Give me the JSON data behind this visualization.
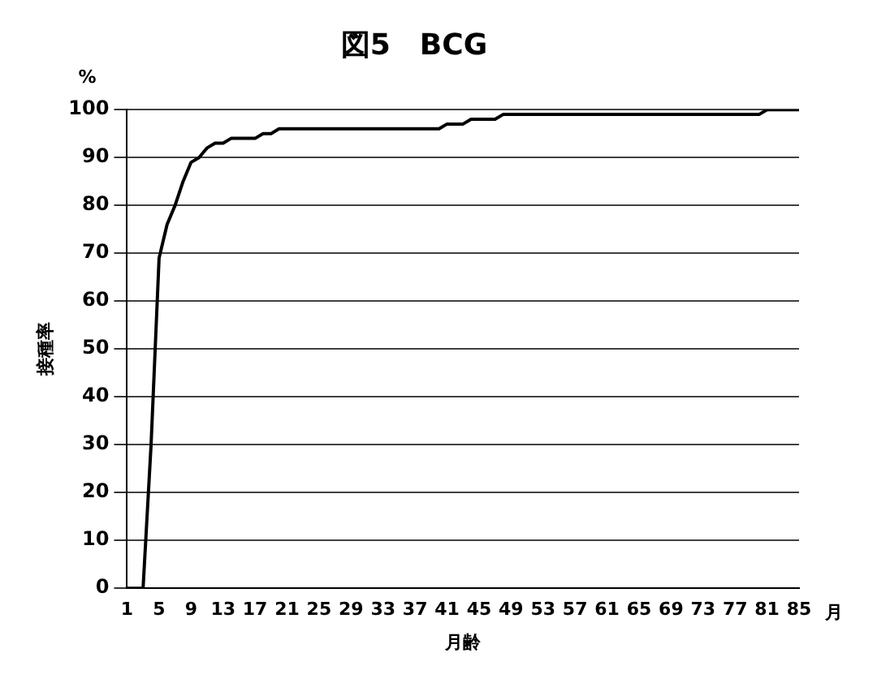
{
  "chart_data": {
    "type": "line",
    "title": "図5　BCG",
    "xlabel": "月齢",
    "ylabel": "接種率",
    "annotations": [
      "%",
      "月"
    ],
    "categories": [
      "1",
      null,
      null,
      null,
      "5",
      null,
      null,
      null,
      "9",
      null,
      null,
      null,
      "13",
      null,
      null,
      null,
      "17",
      null,
      null,
      null,
      "21",
      null,
      null,
      null,
      "25",
      null,
      null,
      null,
      "29",
      null,
      null,
      null,
      "33",
      null,
      null,
      null,
      "37",
      null,
      null,
      null,
      "41",
      null,
      null,
      null,
      "45",
      null,
      null,
      null,
      "49",
      null,
      null,
      null,
      "53",
      null,
      null,
      null,
      "57",
      null,
      null,
      null,
      "61",
      null,
      null,
      null,
      "65",
      null,
      null,
      null,
      "69",
      null,
      null,
      null,
      "73",
      null,
      null,
      null,
      "77",
      null,
      null,
      null,
      "81",
      null,
      null,
      null,
      "85"
    ],
    "series": [
      {
        "color": "#000000",
        "values": [
          0,
          0,
          0,
          30,
          69,
          76,
          80,
          85,
          89,
          90,
          92,
          93,
          93,
          94,
          94,
          94,
          94,
          95,
          95,
          96,
          96,
          96,
          96,
          96,
          96,
          96,
          96,
          96,
          96,
          96,
          96,
          96,
          96,
          96,
          96,
          96,
          96,
          96,
          96,
          96,
          97,
          97,
          97,
          98,
          98,
          98,
          98,
          99,
          99,
          99,
          99,
          99,
          99,
          99,
          99,
          99,
          99,
          99,
          99,
          99,
          99,
          99,
          99,
          99,
          99,
          99,
          99,
          99,
          99,
          99,
          99,
          99,
          99,
          99,
          99,
          99,
          99,
          99,
          99,
          99,
          100,
          100,
          100,
          100,
          100
        ]
      }
    ],
    "ylim": [
      0,
      100
    ],
    "yticks": [
      0,
      10,
      20,
      30,
      40,
      50,
      60,
      70,
      80,
      90,
      100
    ],
    "grid": "y",
    "legend": false,
    "marker": "none",
    "line_style": "solid"
  }
}
